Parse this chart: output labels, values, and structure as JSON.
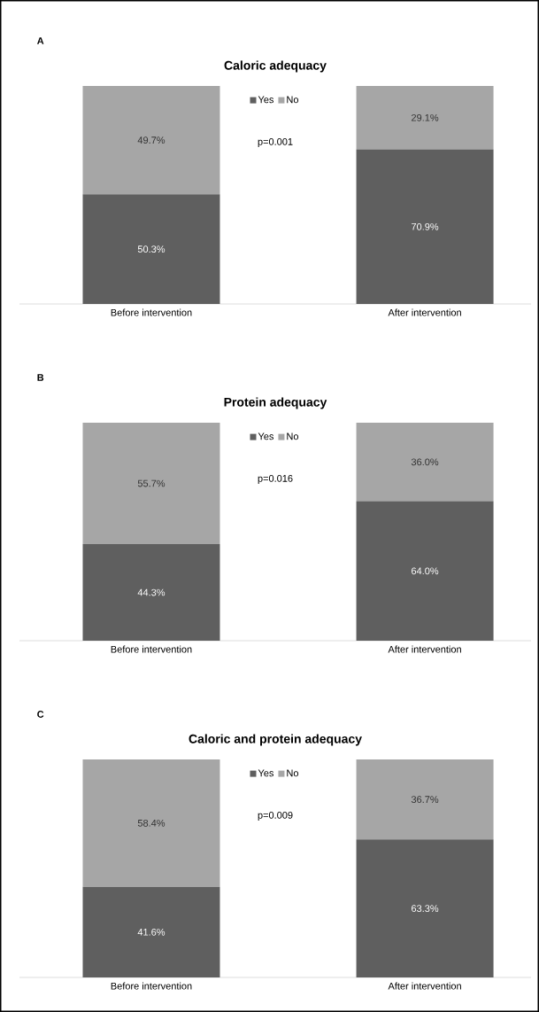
{
  "chart_data": [
    {
      "type": "bar",
      "title": "Caloric adequacy",
      "categories": [
        "Before intervention",
        "After intervention"
      ],
      "stacked": true,
      "ylim": [
        0,
        100
      ],
      "legend": "top",
      "annotations": [
        "A",
        "p=0.001"
      ],
      "series": [
        {
          "name": "Yes",
          "color": "#5f5f5f",
          "values": [
            50.3,
            70.9
          ],
          "value_labels": [
            "50.3%",
            "70.9%"
          ]
        },
        {
          "name": "No",
          "color": "#a6a6a6",
          "values": [
            49.7,
            29.1
          ],
          "value_labels": [
            "49.7%",
            "29.1%"
          ]
        }
      ]
    },
    {
      "type": "bar",
      "title": "Protein adequacy",
      "categories": [
        "Before intervention",
        "After intervention"
      ],
      "stacked": true,
      "ylim": [
        0,
        100
      ],
      "legend": "top",
      "annotations": [
        "B",
        "p=0.016"
      ],
      "series": [
        {
          "name": "Yes",
          "color": "#5f5f5f",
          "values": [
            44.3,
            64.0
          ],
          "value_labels": [
            "44.3%",
            "64.0%"
          ]
        },
        {
          "name": "No",
          "color": "#a6a6a6",
          "values": [
            55.7,
            36.0
          ],
          "value_labels": [
            "55.7%",
            "36.0%"
          ]
        }
      ]
    },
    {
      "type": "bar",
      "title": "Caloric and protein adequacy",
      "categories": [
        "Before intervention",
        "After intervention"
      ],
      "stacked": true,
      "ylim": [
        0,
        100
      ],
      "legend": "top",
      "annotations": [
        "C",
        "p=0.009"
      ],
      "series": [
        {
          "name": "Yes",
          "color": "#5f5f5f",
          "values": [
            41.6,
            63.3
          ],
          "value_labels": [
            "41.6%",
            "63.3%"
          ]
        },
        {
          "name": "No",
          "color": "#a6a6a6",
          "values": [
            58.4,
            36.7
          ],
          "value_labels": [
            "58.4%",
            "36.7%"
          ]
        }
      ]
    }
  ]
}
